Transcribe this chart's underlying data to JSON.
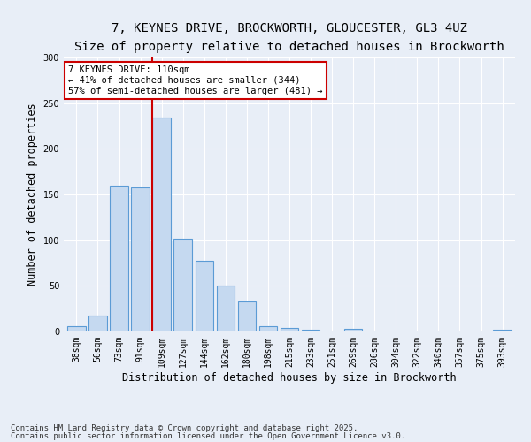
{
  "title1": "7, KEYNES DRIVE, BROCKWORTH, GLOUCESTER, GL3 4UZ",
  "title2": "Size of property relative to detached houses in Brockworth",
  "xlabel": "Distribution of detached houses by size in Brockworth",
  "ylabel": "Number of detached properties",
  "categories": [
    "38sqm",
    "56sqm",
    "73sqm",
    "91sqm",
    "109sqm",
    "127sqm",
    "144sqm",
    "162sqm",
    "180sqm",
    "198sqm",
    "215sqm",
    "233sqm",
    "251sqm",
    "269sqm",
    "286sqm",
    "304sqm",
    "322sqm",
    "340sqm",
    "357sqm",
    "375sqm",
    "393sqm"
  ],
  "values": [
    6,
    17,
    160,
    158,
    234,
    102,
    77,
    50,
    33,
    6,
    4,
    2,
    0,
    3,
    0,
    0,
    0,
    0,
    0,
    0,
    2
  ],
  "bar_color": "#c5d9f0",
  "bar_edge_color": "#5b9bd5",
  "vline_color": "#cc0000",
  "annotation_line1": "7 KEYNES DRIVE: 110sqm",
  "annotation_line2": "← 41% of detached houses are smaller (344)",
  "annotation_line3": "57% of semi-detached houses are larger (481) →",
  "annotation_box_color": "#ffffff",
  "annotation_box_edge_color": "#cc0000",
  "ylim": [
    0,
    300
  ],
  "yticks": [
    0,
    50,
    100,
    150,
    200,
    250,
    300
  ],
  "background_color": "#e8eef7",
  "grid_color": "#ffffff",
  "footer1": "Contains HM Land Registry data © Crown copyright and database right 2025.",
  "footer2": "Contains public sector information licensed under the Open Government Licence v3.0.",
  "title_fontsize": 10,
  "subtitle_fontsize": 9,
  "axis_fontsize": 8.5,
  "tick_fontsize": 7,
  "annot_fontsize": 7.5,
  "footer_fontsize": 6.5
}
